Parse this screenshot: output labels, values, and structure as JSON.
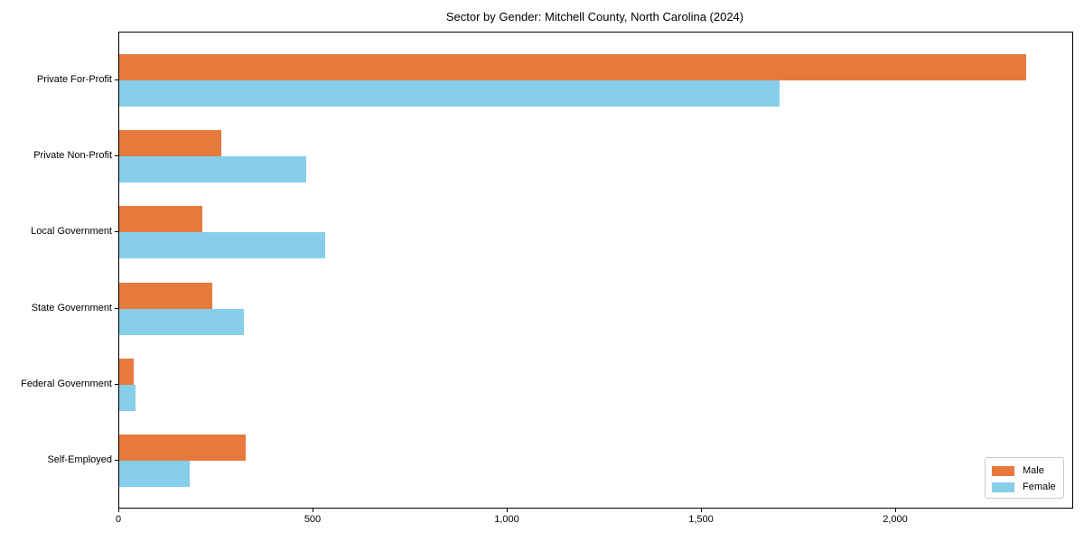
{
  "chart_data": {
    "type": "bar",
    "orientation": "horizontal",
    "title": "Sector by Gender: Mitchell County, North Carolina (2024)",
    "xlabel": "",
    "ylabel": "",
    "grid": false,
    "categories": [
      "Private For-Profit",
      "Private Non-Profit",
      "Local Government",
      "State Government",
      "Federal Government",
      "Self-Employed"
    ],
    "series": [
      {
        "name": "Male",
        "color": "#E8793D",
        "values": [
          2335,
          263,
          213,
          239,
          38,
          325
        ]
      },
      {
        "name": "Female",
        "color": "#87CEEB",
        "values": [
          1700,
          481,
          529,
          321,
          42,
          182
        ]
      }
    ],
    "xlim": [
      0,
      2453
    ],
    "x_ticks": [
      {
        "value": 0,
        "label": "0"
      },
      {
        "value": 500,
        "label": "500"
      },
      {
        "value": 1000,
        "label": "1,000"
      },
      {
        "value": 1500,
        "label": "1,500"
      },
      {
        "value": 2000,
        "label": "2,000"
      }
    ],
    "legend": {
      "position": "lower right",
      "entries": [
        "Male",
        "Female"
      ]
    }
  },
  "colors": {
    "male": "#E8793D",
    "female": "#87CEEB",
    "axis": "#000000",
    "background": "#ffffff",
    "legend_border": "#c9c9c9"
  }
}
